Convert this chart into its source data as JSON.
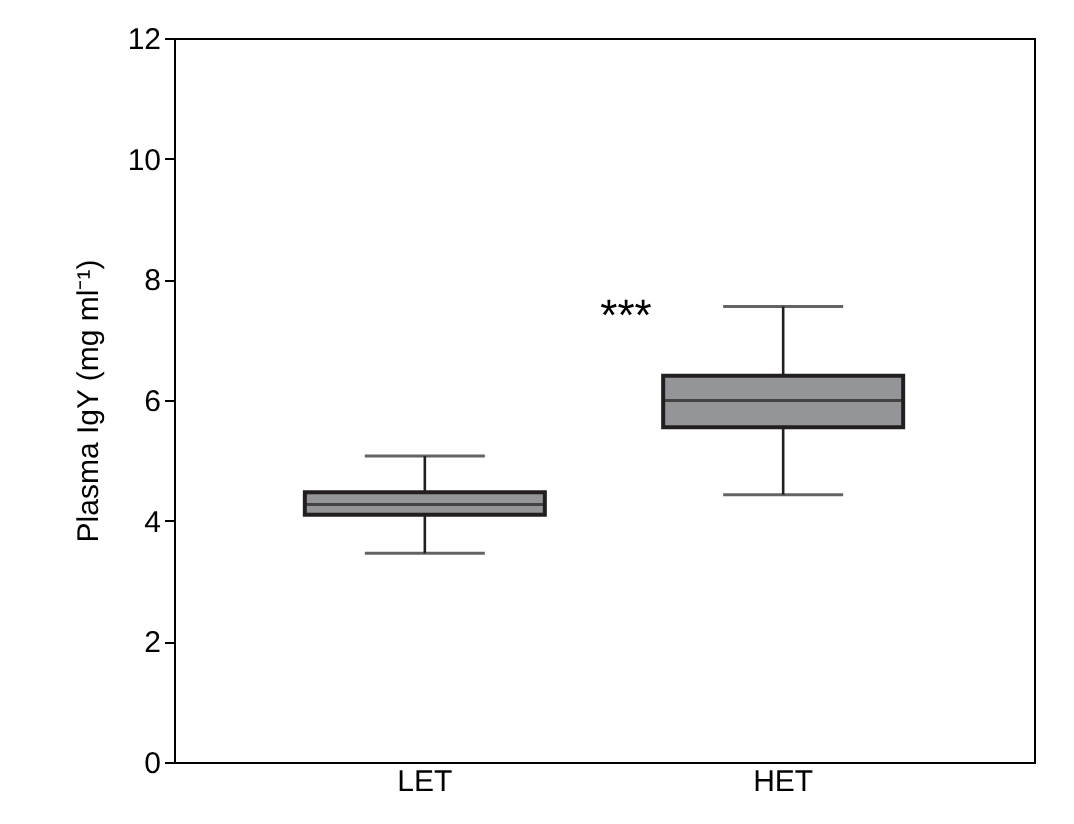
{
  "chart_data": {
    "type": "box",
    "ylabel": "Plasma IgY (mg ml⁻¹)",
    "categories": [
      "LET",
      "HET"
    ],
    "boxes": [
      {
        "low": 3.46,
        "q1": 4.1,
        "median": 4.27,
        "q3": 4.47,
        "high": 5.07
      },
      {
        "low": 4.43,
        "q1": 5.55,
        "median": 5.99,
        "q3": 6.4,
        "high": 7.55
      }
    ],
    "colors": [
      "#939598",
      "#939598"
    ],
    "ylim": [
      0,
      12
    ],
    "yticks": [
      0,
      2,
      4,
      6,
      8,
      10,
      12
    ],
    "grid": false,
    "annotations": [
      "***"
    ]
  }
}
